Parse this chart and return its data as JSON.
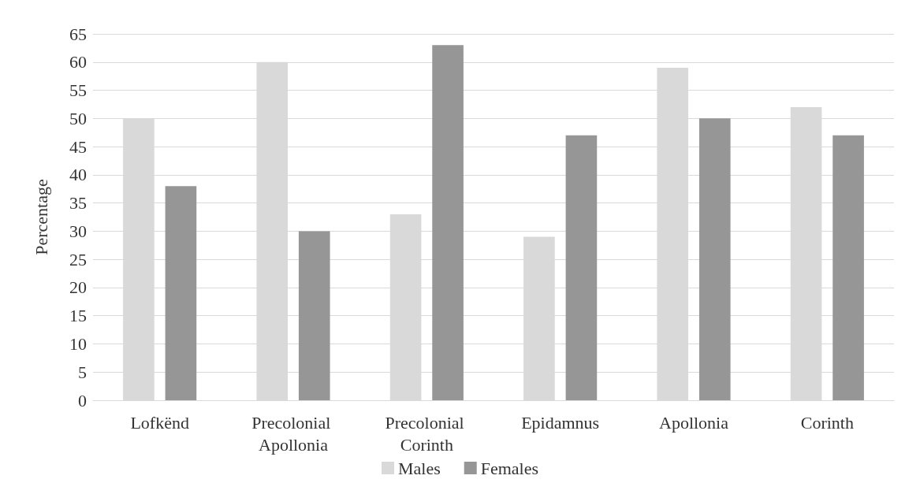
{
  "chart_data": {
    "type": "bar",
    "ylabel": "Percentage",
    "categories": [
      "Lofkënd",
      "Precolonial Apollonia",
      "Precolonial Corinth",
      "Epidamnus",
      "Apollonia",
      "Corinth"
    ],
    "series": [
      {
        "name": "Males",
        "color": "#d9d9d9",
        "values": [
          50,
          60,
          33,
          29,
          59,
          52
        ]
      },
      {
        "name": "Females",
        "color": "#969696",
        "values": [
          38,
          30,
          63,
          47,
          50,
          47
        ]
      }
    ],
    "ylim": [
      0,
      65
    ],
    "yticks": [
      0,
      5,
      10,
      15,
      20,
      25,
      30,
      35,
      40,
      45,
      50,
      55,
      60,
      65
    ],
    "grid": "y",
    "legend": "bottom"
  }
}
